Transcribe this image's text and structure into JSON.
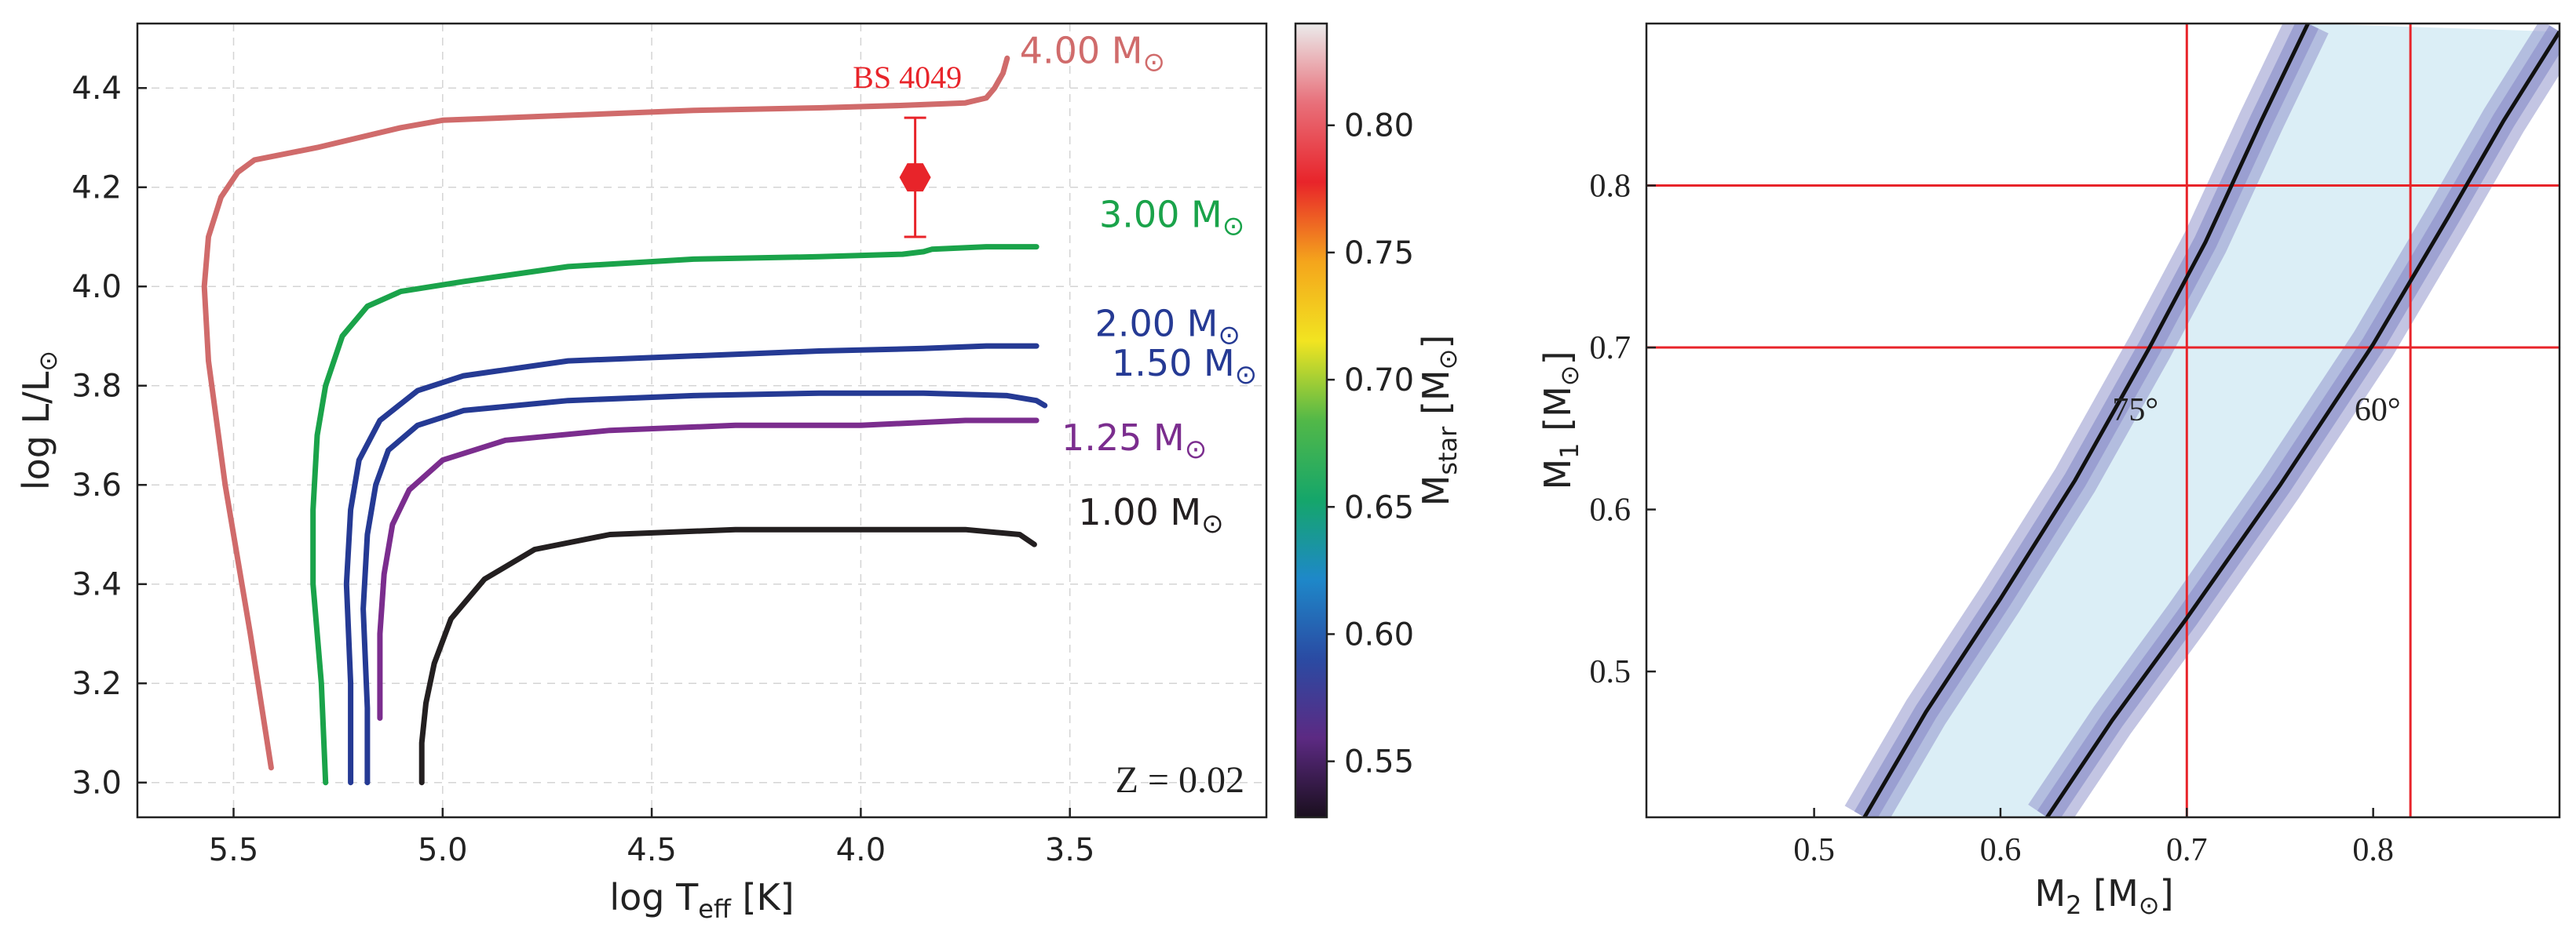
{
  "chart_data": [
    {
      "type": "line",
      "title": "",
      "xlabel": "log T",
      "xlabel_sub": "eff",
      "xlabel_unit": " [K]",
      "ylabel": "log L/L",
      "ylabel_sym": "⊙",
      "xlim": [
        5.73,
        3.03
      ],
      "ylim": [
        2.93,
        4.53
      ],
      "x_reversed": true,
      "grid": true,
      "xticks": [
        5.5,
        5.0,
        4.5,
        4.0,
        3.5
      ],
      "xtick_labels": [
        "5.5",
        "5.0",
        "4.5",
        "4.0",
        "3.5"
      ],
      "yticks": [
        3.0,
        3.2,
        3.4,
        3.6,
        3.8,
        4.0,
        4.2,
        4.4
      ],
      "ytick_labels": [
        "3.0",
        "3.2",
        "3.4",
        "3.6",
        "3.8",
        "4.0",
        "4.2",
        "4.4"
      ],
      "annotation": "Z = 0.02",
      "series": [
        {
          "name": "1.00",
          "unit": " M",
          "sym": "⊙",
          "color": "#231f20",
          "label_at": [
            3.48,
            3.52
          ],
          "label_color": "#231f20",
          "points": [
            [
              5.05,
              3.0
            ],
            [
              5.05,
              3.08
            ],
            [
              5.04,
              3.16
            ],
            [
              5.02,
              3.24
            ],
            [
              4.98,
              3.33
            ],
            [
              4.9,
              3.41
            ],
            [
              4.78,
              3.47
            ],
            [
              4.6,
              3.5
            ],
            [
              4.3,
              3.51
            ],
            [
              4.0,
              3.51
            ],
            [
              3.75,
              3.51
            ],
            [
              3.62,
              3.5
            ],
            [
              3.585,
              3.48
            ]
          ]
        },
        {
          "name": "1.25",
          "unit": " M",
          "sym": "⊙",
          "color": "#7b2d8e",
          "label_at": [
            3.52,
            3.67
          ],
          "label_color": "#7b2d8e",
          "points": [
            [
              5.15,
              3.13
            ],
            [
              5.15,
              3.3
            ],
            [
              5.14,
              3.42
            ],
            [
              5.12,
              3.52
            ],
            [
              5.08,
              3.59
            ],
            [
              5.0,
              3.65
            ],
            [
              4.85,
              3.69
            ],
            [
              4.6,
              3.71
            ],
            [
              4.3,
              3.72
            ],
            [
              4.0,
              3.72
            ],
            [
              3.75,
              3.73
            ],
            [
              3.58,
              3.73
            ]
          ]
        },
        {
          "name": "1.50",
          "unit": " M",
          "sym": "⊙",
          "color": "#253a94",
          "label_at": [
            3.4,
            3.82
          ],
          "label_color": "#253a94",
          "points": [
            [
              5.18,
              3.0
            ],
            [
              5.18,
              3.15
            ],
            [
              5.19,
              3.35
            ],
            [
              5.18,
              3.5
            ],
            [
              5.16,
              3.6
            ],
            [
              5.13,
              3.67
            ],
            [
              5.06,
              3.72
            ],
            [
              4.95,
              3.75
            ],
            [
              4.7,
              3.77
            ],
            [
              4.4,
              3.78
            ],
            [
              4.1,
              3.785
            ],
            [
              3.85,
              3.785
            ],
            [
              3.65,
              3.78
            ],
            [
              3.58,
              3.77
            ],
            [
              3.56,
              3.76
            ]
          ]
        },
        {
          "name": "2.00",
          "unit": " M",
          "sym": "⊙",
          "color": "#253a94",
          "label_at": [
            3.44,
            3.9
          ],
          "label_color": "#253a94",
          "points": [
            [
              5.22,
              3.0
            ],
            [
              5.22,
              3.2
            ],
            [
              5.23,
              3.4
            ],
            [
              5.22,
              3.55
            ],
            [
              5.2,
              3.65
            ],
            [
              5.15,
              3.73
            ],
            [
              5.06,
              3.79
            ],
            [
              4.95,
              3.82
            ],
            [
              4.7,
              3.85
            ],
            [
              4.4,
              3.86
            ],
            [
              4.1,
              3.87
            ],
            [
              3.85,
              3.875
            ],
            [
              3.7,
              3.88
            ],
            [
              3.58,
              3.88
            ]
          ]
        },
        {
          "name": "3.00",
          "unit": " M",
          "sym": "⊙",
          "color": "#1aa34a",
          "label_at": [
            3.43,
            4.12
          ],
          "label_color": "#1aa34a",
          "points": [
            [
              5.28,
              3.0
            ],
            [
              5.29,
              3.2
            ],
            [
              5.31,
              3.4
            ],
            [
              5.31,
              3.55
            ],
            [
              5.3,
              3.7
            ],
            [
              5.28,
              3.8
            ],
            [
              5.24,
              3.9
            ],
            [
              5.18,
              3.96
            ],
            [
              5.1,
              3.99
            ],
            [
              4.95,
              4.01
            ],
            [
              4.7,
              4.04
            ],
            [
              4.4,
              4.055
            ],
            [
              4.1,
              4.06
            ],
            [
              3.9,
              4.065
            ],
            [
              3.85,
              4.07
            ],
            [
              3.83,
              4.075
            ],
            [
              3.7,
              4.08
            ],
            [
              3.58,
              4.08
            ]
          ]
        },
        {
          "name": "4.00",
          "unit": " M",
          "sym": "⊙",
          "color": "#d06b6b",
          "label_at": [
            3.62,
            4.45
          ],
          "label_color": "#d06b6b",
          "points": [
            [
              5.41,
              3.03
            ],
            [
              5.46,
              3.3
            ],
            [
              5.52,
              3.6
            ],
            [
              5.56,
              3.85
            ],
            [
              5.57,
              4.0
            ],
            [
              5.56,
              4.1
            ],
            [
              5.53,
              4.18
            ],
            [
              5.49,
              4.23
            ],
            [
              5.45,
              4.255
            ],
            [
              5.3,
              4.28
            ],
            [
              5.1,
              4.32
            ],
            [
              5.0,
              4.335
            ],
            [
              4.7,
              4.345
            ],
            [
              4.4,
              4.355
            ],
            [
              4.1,
              4.36
            ],
            [
              3.9,
              4.365
            ],
            [
              3.75,
              4.37
            ],
            [
              3.7,
              4.38
            ],
            [
              3.68,
              4.4
            ],
            [
              3.66,
              4.43
            ],
            [
              3.65,
              4.46
            ]
          ]
        }
      ],
      "data_point": {
        "label": "BS 4049",
        "x": 3.87,
        "y": 4.22,
        "yerr": 0.12,
        "color": "#e8242a"
      },
      "colorbar": {
        "label": "M",
        "label_sub": "star",
        "label_unit": " [M",
        "label_sym": "⊙",
        "label_close": "]",
        "range": [
          0.528,
          0.84
        ],
        "ticks": [
          0.55,
          0.6,
          0.65,
          0.7,
          0.75,
          0.8
        ],
        "tick_labels": [
          "0.55",
          "0.60",
          "0.65",
          "0.70",
          "0.75",
          "0.80"
        ],
        "colors": [
          "#1a0f1e",
          "#5c2a83",
          "#2a4ba3",
          "#1e88c9",
          "#15a66a",
          "#52b848",
          "#f2e421",
          "#f4a51c",
          "#e8242a",
          "#e8707a",
          "#ebebeb"
        ]
      }
    },
    {
      "type": "line",
      "title": "",
      "xlabel": "M",
      "xlabel_sub": "2",
      "xlabel_unit": " [M",
      "xlabel_sym": "⊙",
      "xlabel_close": "]",
      "ylabel": "M",
      "ylabel_sub": "1",
      "ylabel_unit": " [M",
      "ylabel_sym": "⊙",
      "ylabel_close": "]",
      "xlim": [
        0.41,
        0.9
      ],
      "ylim": [
        0.41,
        0.9
      ],
      "grid": false,
      "xticks": [
        0.5,
        0.6,
        0.7,
        0.8
      ],
      "xtick_labels": [
        "0.5",
        "0.6",
        "0.7",
        "0.8"
      ],
      "yticks": [
        0.5,
        0.6,
        0.7,
        0.8
      ],
      "ytick_labels": [
        "0.5",
        "0.6",
        "0.7",
        "0.8"
      ],
      "ref_lines": {
        "vertical": [
          0.7,
          0.82
        ],
        "horizontal": [
          0.7,
          0.8
        ],
        "color": "#e8242a"
      },
      "band_fill": "#dbeef6",
      "band_edge": "#9196cc",
      "curves": [
        {
          "name": "75°",
          "color": "#111111",
          "points": [
            [
              0.527,
              0.41
            ],
            [
              0.56,
              0.475
            ],
            [
              0.6,
              0.545
            ],
            [
              0.64,
              0.618
            ],
            [
              0.68,
              0.7
            ],
            [
              0.71,
              0.765
            ],
            [
              0.74,
              0.84
            ],
            [
              0.765,
              0.9
            ]
          ],
          "label_at": [
            0.66,
            0.655
          ]
        },
        {
          "name": "60°",
          "color": "#111111",
          "points": [
            [
              0.625,
              0.41
            ],
            [
              0.66,
              0.47
            ],
            [
              0.7,
              0.533
            ],
            [
              0.75,
              0.615
            ],
            [
              0.8,
              0.702
            ],
            [
              0.84,
              0.78
            ],
            [
              0.87,
              0.84
            ],
            [
              0.9,
              0.895
            ]
          ],
          "label_at": [
            0.79,
            0.655
          ]
        }
      ]
    }
  ]
}
